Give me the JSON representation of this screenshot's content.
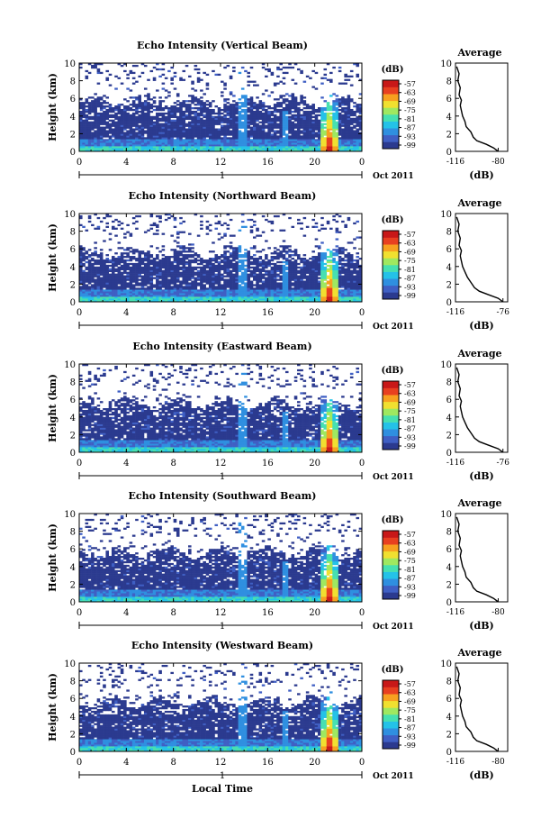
{
  "figure": {
    "xlabel": "Local Time",
    "date_label": "Oct 2011",
    "day_label": "1",
    "ylabel": "Height (km)",
    "colorbar_unit": "(dB)",
    "colorbar_ticks": [
      "-57",
      "-63",
      "-69",
      "-75",
      "-81",
      "-87",
      "-93",
      "-99"
    ],
    "profile_title": "Average",
    "profile_xlabel": "(dB)"
  },
  "chart_data": [
    {
      "type": "heatmap",
      "title": "Echo Intensity (Vertical Beam)",
      "ylabel": "Height (km)",
      "xlabel": "Local Time",
      "x_ticks": [
        "0",
        "4",
        "8",
        "12",
        "16",
        "20",
        "0"
      ],
      "y_ticks": [
        "0",
        "2",
        "4",
        "6",
        "8",
        "10"
      ],
      "xlim": [
        0,
        24
      ],
      "ylim": [
        0,
        10
      ],
      "colorbar_range": [
        -99,
        -57
      ],
      "colorbar_label": "(dB)"
    },
    {
      "type": "line",
      "title": "Average",
      "xlabel": "(dB)",
      "x_ticks": [
        "-116",
        "-80"
      ],
      "y_ticks": [
        "0",
        "2",
        "4",
        "6",
        "8",
        "10"
      ],
      "xlim": [
        -116,
        -72
      ],
      "ylim": [
        0,
        10
      ],
      "x": [
        -80,
        -84,
        -90,
        -98,
        -101,
        -103,
        -107,
        -108,
        -110,
        -111,
        -112,
        -111,
        -113,
        -112,
        -114,
        -113,
        -115
      ],
      "y": [
        0,
        0.4,
        0.8,
        1.2,
        1.6,
        2.2,
        2.8,
        3.4,
        4.0,
        4.6,
        5.2,
        5.8,
        6.4,
        7.2,
        8.0,
        8.8,
        9.6
      ]
    },
    {
      "type": "heatmap",
      "title": "Echo Intensity (Northward Beam)",
      "ylabel": "Height (km)",
      "xlabel": "Local Time",
      "x_ticks": [
        "0",
        "4",
        "8",
        "12",
        "16",
        "20",
        "0"
      ],
      "y_ticks": [
        "0",
        "2",
        "4",
        "6",
        "8",
        "10"
      ],
      "xlim": [
        0,
        24
      ],
      "ylim": [
        0,
        10
      ],
      "colorbar_range": [
        -99,
        -57
      ],
      "colorbar_label": "(dB)"
    },
    {
      "type": "line",
      "title": "Average",
      "xlabel": "(dB)",
      "x_ticks": [
        "-116",
        "-76"
      ],
      "y_ticks": [
        "0",
        "2",
        "4",
        "6",
        "8",
        "10"
      ],
      "xlim": [
        -116,
        -72
      ],
      "ylim": [
        0,
        10
      ],
      "x": [
        -76,
        -80,
        -88,
        -96,
        -100,
        -103,
        -106,
        -108,
        -110,
        -111,
        -112,
        -111,
        -113,
        -112,
        -114,
        -113,
        -115
      ],
      "y": [
        0,
        0.4,
        0.8,
        1.2,
        1.6,
        2.2,
        2.8,
        3.4,
        4.0,
        4.6,
        5.2,
        5.8,
        6.4,
        7.2,
        8.0,
        8.8,
        9.6
      ]
    },
    {
      "type": "heatmap",
      "title": "Echo Intensity (Eastward Beam)",
      "ylabel": "Height (km)",
      "xlabel": "Local Time",
      "x_ticks": [
        "0",
        "4",
        "8",
        "12",
        "16",
        "20",
        "0"
      ],
      "y_ticks": [
        "0",
        "2",
        "4",
        "6",
        "8",
        "10"
      ],
      "xlim": [
        0,
        24
      ],
      "ylim": [
        0,
        10
      ],
      "colorbar_range": [
        -99,
        -57
      ],
      "colorbar_label": "(dB)"
    },
    {
      "type": "line",
      "title": "Average",
      "xlabel": "(dB)",
      "x_ticks": [
        "-116",
        "-76"
      ],
      "y_ticks": [
        "0",
        "2",
        "4",
        "6",
        "8",
        "10"
      ],
      "xlim": [
        -116,
        -72
      ],
      "ylim": [
        0,
        10
      ],
      "x": [
        -76,
        -80,
        -88,
        -96,
        -100,
        -103,
        -106,
        -108,
        -110,
        -111,
        -112,
        -111,
        -113,
        -112,
        -114,
        -113,
        -115
      ],
      "y": [
        0,
        0.4,
        0.8,
        1.2,
        1.6,
        2.2,
        2.8,
        3.4,
        4.0,
        4.6,
        5.2,
        5.8,
        6.4,
        7.2,
        8.0,
        8.8,
        9.6
      ]
    },
    {
      "type": "heatmap",
      "title": "Echo Intensity (Southward Beam)",
      "ylabel": "Height (km)",
      "xlabel": "Local Time",
      "x_ticks": [
        "0",
        "4",
        "8",
        "12",
        "16",
        "20",
        "0"
      ],
      "y_ticks": [
        "0",
        "2",
        "4",
        "6",
        "8",
        "10"
      ],
      "xlim": [
        0,
        24
      ],
      "ylim": [
        0,
        10
      ],
      "colorbar_range": [
        -99,
        -57
      ],
      "colorbar_label": "(dB)"
    },
    {
      "type": "line",
      "title": "Average",
      "xlabel": "(dB)",
      "x_ticks": [
        "-116",
        "-80"
      ],
      "y_ticks": [
        "0",
        "2",
        "4",
        "6",
        "8",
        "10"
      ],
      "xlim": [
        -116,
        -72
      ],
      "ylim": [
        0,
        10
      ],
      "x": [
        -80,
        -84,
        -90,
        -98,
        -101,
        -103,
        -107,
        -108,
        -110,
        -111,
        -112,
        -111,
        -113,
        -112,
        -114,
        -113,
        -115
      ],
      "y": [
        0,
        0.4,
        0.8,
        1.2,
        1.6,
        2.2,
        2.8,
        3.4,
        4.0,
        4.6,
        5.2,
        5.8,
        6.4,
        7.2,
        8.0,
        8.8,
        9.6
      ]
    },
    {
      "type": "heatmap",
      "title": "Echo Intensity (Westward Beam)",
      "ylabel": "Height (km)",
      "xlabel": "Local Time",
      "x_ticks": [
        "0",
        "4",
        "8",
        "12",
        "16",
        "20",
        "0"
      ],
      "y_ticks": [
        "0",
        "2",
        "4",
        "6",
        "8",
        "10"
      ],
      "xlim": [
        0,
        24
      ],
      "ylim": [
        0,
        10
      ],
      "colorbar_range": [
        -99,
        -57
      ],
      "colorbar_label": "(dB)"
    },
    {
      "type": "line",
      "title": "Average",
      "xlabel": "(dB)",
      "x_ticks": [
        "-116",
        "-80"
      ],
      "y_ticks": [
        "0",
        "2",
        "4",
        "6",
        "8",
        "10"
      ],
      "xlim": [
        -116,
        -72
      ],
      "ylim": [
        0,
        10
      ],
      "x": [
        -80,
        -84,
        -90,
        -98,
        -101,
        -103,
        -107,
        -108,
        -110,
        -111,
        -112,
        -111,
        -113,
        -112,
        -114,
        -113,
        -115
      ],
      "y": [
        0,
        0.4,
        0.8,
        1.2,
        1.6,
        2.2,
        2.8,
        3.4,
        4.0,
        4.6,
        5.2,
        5.8,
        6.4,
        7.2,
        8.0,
        8.8,
        9.6
      ]
    }
  ],
  "colors": {
    "background_echo": "#3a4a9a",
    "colormap": [
      "#2b3a8f",
      "#3f5fc4",
      "#2f8fe0",
      "#24c2e8",
      "#46e0b0",
      "#9fe860",
      "#f0e030",
      "#f7a020",
      "#e84020",
      "#c81818"
    ]
  }
}
